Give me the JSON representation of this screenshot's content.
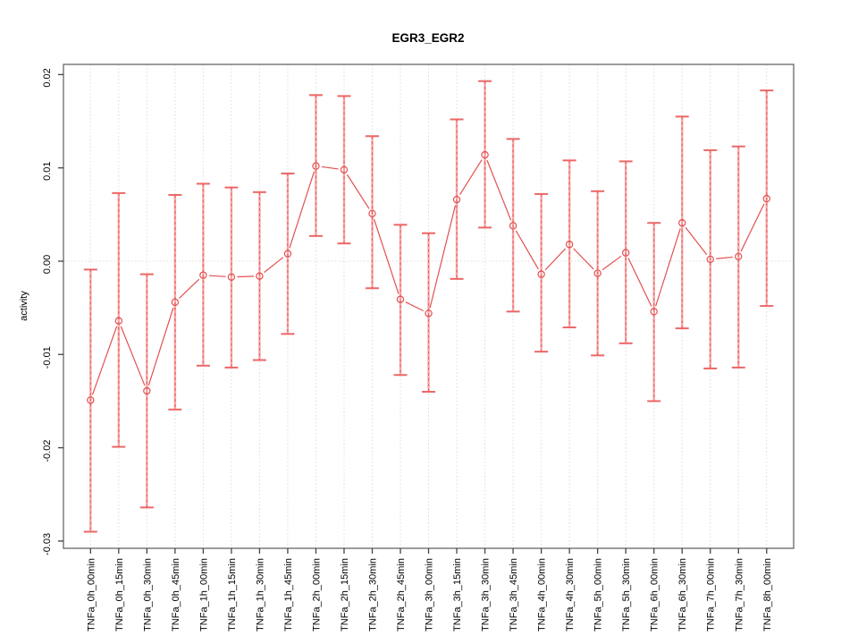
{
  "figure": {
    "title": "EGR3_EGR2",
    "ylabel": "activity"
  },
  "chart_data": {
    "type": "line",
    "title": "EGR3_EGR2",
    "xlabel": "",
    "ylabel": "activity",
    "categories": [
      "TNFa_0h_00min",
      "TNFa_0h_15min",
      "TNFa_0h_30min",
      "TNFa_0h_45min",
      "TNFa_1h_00min",
      "TNFa_1h_15min",
      "TNFa_1h_30min",
      "TNFa_1h_45min",
      "TNFa_2h_00min",
      "TNFa_2h_15min",
      "TNFa_2h_30min",
      "TNFa_2h_45min",
      "TNFa_3h_00min",
      "TNFa_3h_15min",
      "TNFa_3h_30min",
      "TNFa_3h_45min",
      "TNFa_4h_00min",
      "TNFa_4h_30min",
      "TNFa_5h_00min",
      "TNFa_5h_30min",
      "TNFa_6h_00min",
      "TNFa_6h_30min",
      "TNFa_7h_00min",
      "TNFa_7h_30min",
      "TNFa_8h_00min"
    ],
    "series": [
      {
        "name": "activity",
        "values": [
          -0.0149,
          -0.0064,
          -0.0139,
          -0.0044,
          -0.0015,
          -0.0017,
          -0.0016,
          0.0008,
          0.0102,
          0.0098,
          0.0051,
          -0.0041,
          -0.0056,
          0.0066,
          0.0114,
          0.0038,
          -0.0014,
          0.0018,
          -0.0013,
          0.0009,
          -0.0054,
          0.0041,
          0.0002,
          0.0005,
          0.0067
        ],
        "lower": [
          -0.029,
          -0.0199,
          -0.0264,
          -0.0159,
          -0.0112,
          -0.0114,
          -0.0106,
          -0.0078,
          0.0027,
          0.0019,
          -0.0029,
          -0.0122,
          -0.014,
          -0.0019,
          0.0036,
          -0.0054,
          -0.0097,
          -0.0071,
          -0.0101,
          -0.0088,
          -0.015,
          -0.0072,
          -0.0115,
          -0.0114,
          -0.0048
        ],
        "upper": [
          -0.0009,
          0.0073,
          -0.0014,
          0.0071,
          0.0083,
          0.0079,
          0.0074,
          0.0094,
          0.0178,
          0.0177,
          0.0134,
          0.0039,
          0.003,
          0.0152,
          0.0193,
          0.0131,
          0.0072,
          0.0108,
          0.0075,
          0.0107,
          0.0041,
          0.0155,
          0.0119,
          0.0123,
          0.0183
        ]
      }
    ],
    "ylim": [
      -0.0309,
      0.0212
    ],
    "yticks": [
      0.02,
      0.01,
      0.0,
      -0.01,
      -0.02,
      -0.03
    ],
    "ytick_labels": [
      "0.02",
      "0.01",
      "0.00",
      "-0.01",
      "-0.02",
      "-0.03"
    ],
    "legend": "none",
    "grid": {
      "vertical": "dotted gridline at every category",
      "horizontal": "dotted gridline at y=0 only"
    },
    "point_marker": "open-circle",
    "error_bars": true,
    "colors": {
      "line": "#e25050",
      "error_band": "#f7a6a6",
      "cap": "#ec6666",
      "grid": "#dcdcdc",
      "frame": "#666666",
      "tick": "#444444",
      "text": "#000000"
    }
  }
}
